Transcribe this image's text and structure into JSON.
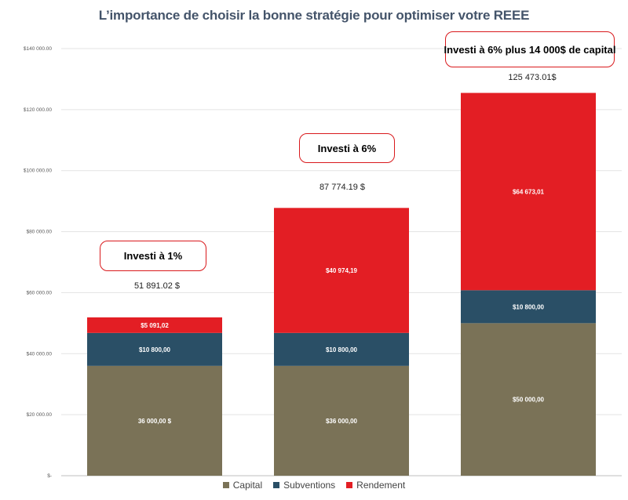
{
  "title": "L’importance de choisir la bonne stratégie pour optimiser votre REEE",
  "chart_data": {
    "type": "bar",
    "stacked": true,
    "categories": [
      "Investi à 1%",
      "Investi à 6%",
      "Investi à 6% plus 14 000$ de capital"
    ],
    "series": [
      {
        "name": "Capital",
        "color": "#7a7257",
        "values": [
          36000,
          36000,
          50000
        ],
        "labels": [
          "36 000,00 $",
          "$36 000,00",
          "$50 000,00"
        ]
      },
      {
        "name": "Subventions",
        "color": "#2a4f66",
        "values": [
          10800,
          10800,
          10800
        ],
        "labels": [
          "$10 800,00",
          "$10 800,00",
          "$10 800,00"
        ]
      },
      {
        "name": "Rendement",
        "color": "#e31e24",
        "values": [
          5091.02,
          40974.19,
          64673.01
        ],
        "labels": [
          "$5 091,02",
          "$40 974,19",
          "$64 673,01"
        ]
      }
    ],
    "totals": [
      51891.02,
      87774.19,
      125473.01
    ],
    "total_labels": [
      "51 891.02 $",
      "87 774.19 $",
      "125 473.01$"
    ],
    "ylim": [
      0,
      140000
    ],
    "y_ticks": [
      0,
      20000,
      40000,
      60000,
      80000,
      100000,
      120000,
      140000
    ],
    "y_tick_labels": [
      "$-",
      "$20 000.00",
      "$40 000.00",
      "$60 000.00",
      "$80 000.00",
      "$100 000.00",
      "$120 000.00",
      "$140 000.00"
    ],
    "grid": true,
    "legend_position": "bottom"
  }
}
